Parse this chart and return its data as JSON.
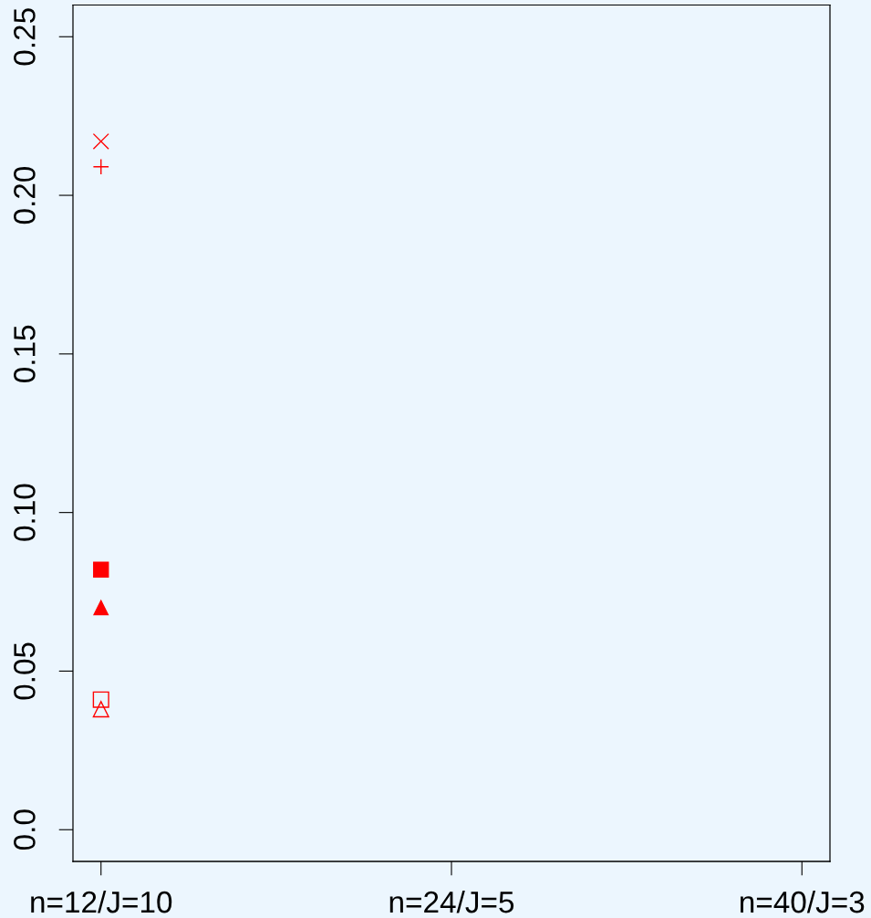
{
  "chart_data": {
    "type": "scatter",
    "categories": [
      "n=12/J=10",
      "n=24/J=5",
      "n=40/J=3"
    ],
    "ylim": [
      -0.01,
      0.26
    ],
    "yticks": [
      {
        "value": 0,
        "label": "0.0"
      },
      0.05,
      {
        "value": 0.1,
        "label": "0.10"
      },
      0.15,
      {
        "value": 0.2,
        "label": "0.20"
      },
      0.25
    ],
    "series": [
      {
        "color": "#ff0000",
        "marker": "cross",
        "values": [
          0.217,
          null,
          null
        ]
      },
      {
        "color": "#ff0000",
        "marker": "plus",
        "values": [
          0.209,
          null,
          null
        ]
      },
      {
        "color": "#ff0000",
        "marker": "square",
        "values": [
          0.082,
          null,
          null
        ]
      },
      {
        "color": "#ff0000",
        "marker": "triangle",
        "values": [
          0.07,
          null,
          null
        ]
      },
      {
        "color": "#ff0000",
        "marker": "square-open",
        "values": [
          0.041,
          null,
          null
        ]
      },
      {
        "color": "#ff0000",
        "marker": "triangle-open",
        "values": [
          0.038,
          null,
          null
        ]
      }
    ]
  }
}
